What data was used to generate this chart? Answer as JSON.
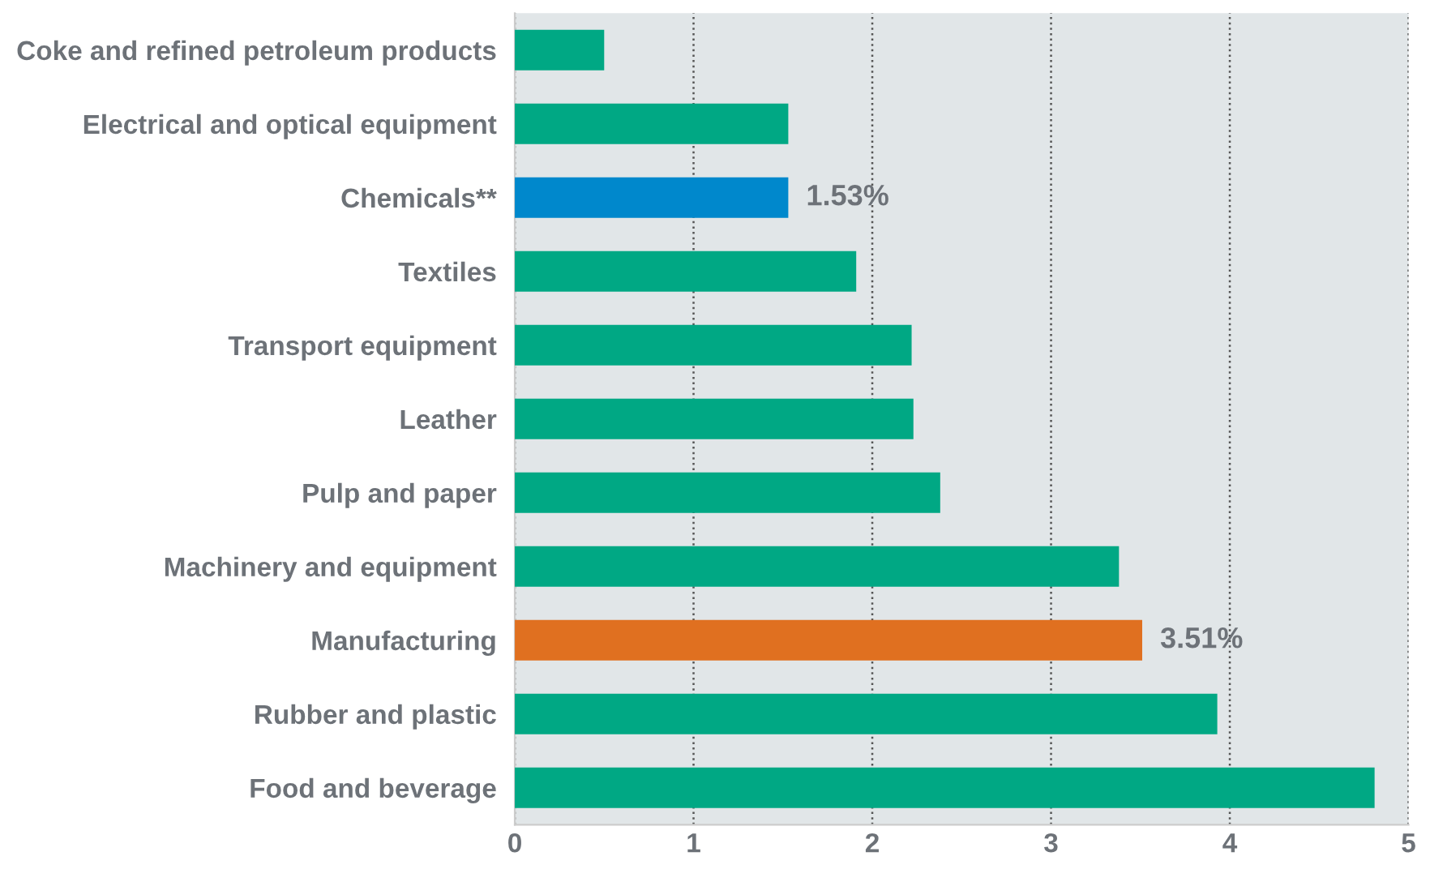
{
  "chart_data": {
    "type": "bar",
    "orientation": "horizontal",
    "categories": [
      "Coke and refined petroleum products",
      "Electrical and optical equipment",
      "Chemicals**",
      "Textiles",
      "Transport equipment",
      "Leather",
      "Pulp and paper",
      "Machinery and equipment",
      "Manufacturing",
      "Rubber and plastic",
      "Food and beverage"
    ],
    "values": [
      0.5,
      1.53,
      1.53,
      1.91,
      2.22,
      2.23,
      2.38,
      3.38,
      3.51,
      3.93,
      4.81
    ],
    "colors": [
      "#00a884",
      "#00a884",
      "#0088cc",
      "#00a884",
      "#00a884",
      "#00a884",
      "#00a884",
      "#00a884",
      "#e07020",
      "#00a884",
      "#00a884"
    ],
    "value_labels": [
      null,
      null,
      "1.53%",
      null,
      null,
      null,
      null,
      null,
      "3.51%",
      null,
      null
    ],
    "xlim": [
      0,
      5
    ],
    "xticks": [
      0,
      1,
      2,
      3,
      4,
      5
    ],
    "grid": "x"
  }
}
